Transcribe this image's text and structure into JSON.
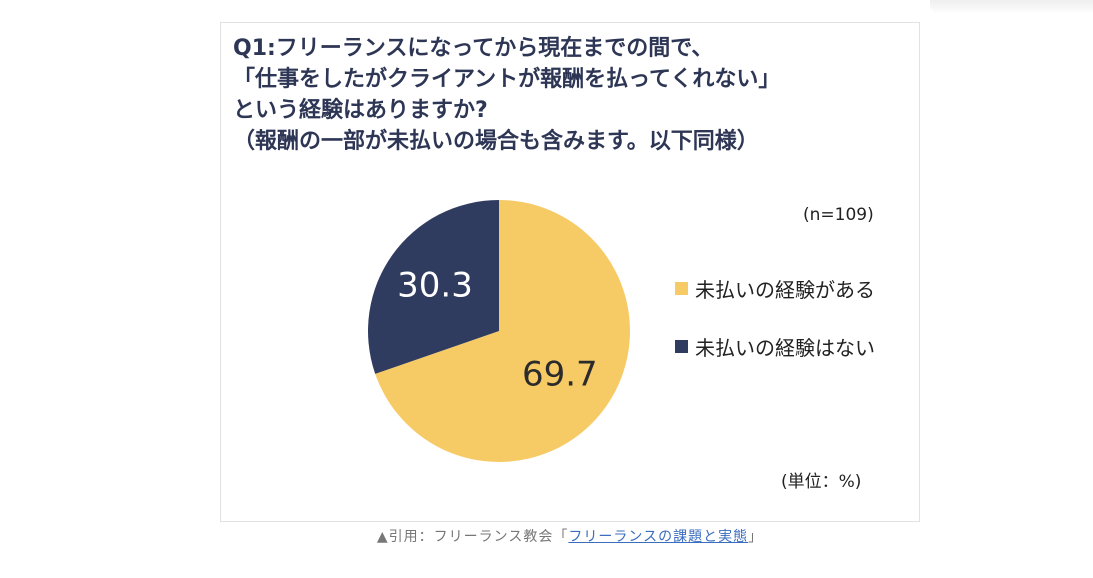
{
  "title_lines": [
    "Q1:フリーランスになってから現在までの間で、",
    "「仕事をしたがクライアントが報酬を払ってくれない」",
    "という経験はありますか?",
    "（報酬の一部が未払いの場合も含みます。以下同様）"
  ],
  "sample_size": "(n=109)",
  "unit": "(単位：%)",
  "chart_data": {
    "type": "pie",
    "title": "Q1:フリーランスになってから現在までの間で、「仕事をしたがクライアントが報酬を払ってくれない」という経験はありますか?（報酬の一部が未払いの場合も含みます。以下同様）",
    "unit": "%",
    "start": "12 o'clock",
    "direction": "clockwise",
    "legend_position": "right",
    "slices": [
      {
        "label": "未払いの経験がある",
        "value": 69.7,
        "display": "69.7",
        "color": "#f6cb66"
      },
      {
        "label": "未払いの経験はない",
        "value": 30.3,
        "display": "30.3",
        "color": "#303b60"
      }
    ]
  },
  "caption": {
    "prefix": "▲引用：フリーランス教会「",
    "link_text": "フリーランスの課題と実態",
    "suffix": "」"
  }
}
